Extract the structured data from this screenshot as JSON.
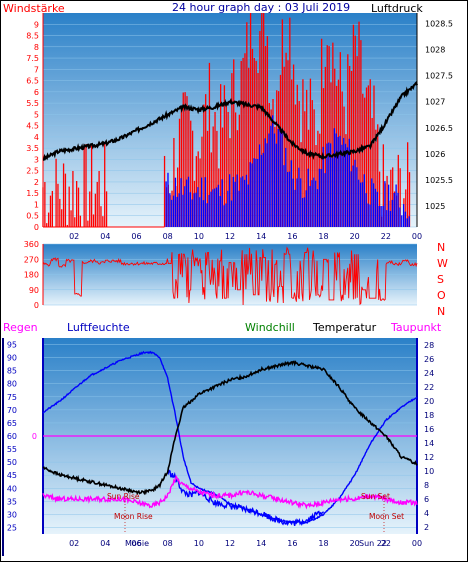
{
  "header": {
    "left_label": "Windstärke",
    "title": "24 hour graph day : 03 Juli 2019",
    "right_label": "Luftdruck"
  },
  "colors": {
    "plot_top": "#2a80c8",
    "plot_bottom": "#e6f3fb",
    "red": "#ff0000",
    "blue": "#0000ff",
    "black": "#000000",
    "magenta": "#ff00ff",
    "green": "#008000",
    "navy": "#00007a",
    "axis_blue": "#0000c0"
  },
  "chart_data": [
    {
      "type": "bar",
      "name": "wind-pressure",
      "left_axis": {
        "label": "Windstärke",
        "ylim": [
          0,
          9.5
        ],
        "ticks": [
          "0",
          "0.5",
          "1",
          "1.5",
          "2",
          "2.5",
          "3",
          "3.5",
          "4",
          "4.5",
          "5",
          "5.5",
          "6",
          "6.5",
          "7",
          "7.5",
          "8",
          "8.5",
          "9"
        ]
      },
      "right_axis": {
        "label": "Luftdruck",
        "ylim": [
          1024.6,
          1028.7
        ],
        "ticks": [
          "1025",
          "1025.5",
          "1026",
          "1026.5",
          "1027",
          "1027.5",
          "1028",
          "1028.5"
        ]
      },
      "x_ticks": [
        "02",
        "04",
        "06",
        "08",
        "10",
        "12",
        "14",
        "16",
        "18",
        "20",
        "22",
        "00"
      ],
      "series": [
        {
          "color": "red",
          "x": [
            0.0,
            0.8,
            1.6,
            3.0,
            4.0,
            7.8,
            8.1,
            8.6,
            9.2,
            9.9,
            10.7,
            11.3,
            12.2,
            12.9,
            13.5,
            13.9,
            14.3,
            14.7,
            15.3,
            15.7,
            16.4,
            17.0,
            17.6,
            18.2,
            18.9,
            19.4,
            20.1,
            20.7,
            21.2,
            21.8,
            22.4,
            23.1,
            23.6
          ],
          "values": [
            1.8,
            1.5,
            1.8,
            1.8,
            1.8,
            1.8,
            2.2,
            3.5,
            4.4,
            3.8,
            5.5,
            4.2,
            5.8,
            6.8,
            9.5,
            8.5,
            9.5,
            5.5,
            7.8,
            9.5,
            6.0,
            5.0,
            4.5,
            9.5,
            6.5,
            5.5,
            8.0,
            5.5,
            4.5,
            1.8,
            1.5,
            1.8,
            1.8
          ]
        },
        {
          "color": "blue",
          "x": [
            7.9,
            8.6,
            9.5,
            10.4,
            11.2,
            12.0,
            12.8,
            13.5,
            14.0,
            14.6,
            15.2,
            15.9,
            16.6,
            17.3,
            18.1,
            18.8,
            19.5,
            20.2,
            20.8,
            21.5,
            22.2,
            23.1,
            23.6
          ],
          "values": [
            1.8,
            1.8,
            1.5,
            1.8,
            1.5,
            1.8,
            1.8,
            2.5,
            3.5,
            4.5,
            4.0,
            2.5,
            2.0,
            1.8,
            3.0,
            4.0,
            3.5,
            2.5,
            1.8,
            1.0,
            1.5,
            1.0,
            1.0
          ]
        },
        {
          "color": "black",
          "type": "line",
          "axis": "right",
          "x": [
            0,
            1,
            2,
            3,
            4,
            5,
            6,
            7,
            8,
            9,
            10,
            11,
            12,
            13,
            14,
            15,
            16,
            17,
            18,
            19,
            20,
            21,
            22,
            23,
            24
          ],
          "values": [
            1025.9,
            1026.05,
            1026.1,
            1026.15,
            1026.2,
            1026.3,
            1026.45,
            1026.6,
            1026.75,
            1026.9,
            1026.85,
            1026.9,
            1027.0,
            1026.95,
            1026.9,
            1026.55,
            1026.2,
            1026.0,
            1025.95,
            1026.0,
            1026.05,
            1026.15,
            1026.6,
            1027.1,
            1027.35
          ]
        }
      ]
    },
    {
      "type": "line",
      "name": "wind-direction",
      "left_axis": {
        "ylim": [
          0,
          360
        ],
        "ticks": [
          "0",
          "90",
          "180",
          "270",
          "360"
        ]
      },
      "right_labels": [
        "N",
        "W",
        "S",
        "O",
        "N"
      ],
      "series": [
        {
          "color": "red",
          "x": [
            0,
            0.5,
            1.0,
            1.5,
            2.0,
            2.5,
            3.0,
            3.5,
            4,
            5,
            6,
            7,
            7.9,
            8.3,
            8.7,
            9.1,
            9.5,
            9.9,
            10.3,
            10.7,
            11.1,
            11.5,
            11.9,
            12.3,
            12.7,
            13.1,
            13.5,
            13.9,
            14.3,
            14.7,
            15.1,
            15.5,
            15.9,
            16.3,
            16.7,
            17.1,
            17.5,
            17.9,
            18.3,
            18.7,
            19.1,
            19.5,
            19.9,
            20.3,
            20.7,
            21.1,
            21.5,
            22.0,
            22.5,
            23.0,
            23.5,
            24
          ],
          "values": [
            240,
            270,
            230,
            260,
            60,
            250,
            260,
            250,
            260,
            245,
            245,
            245,
            245,
            40,
            300,
            90,
            280,
            60,
            310,
            120,
            260,
            40,
            250,
            90,
            300,
            180,
            60,
            280,
            20,
            240,
            110,
            300,
            40,
            200,
            310,
            30,
            60,
            270,
            30,
            310,
            60,
            40,
            300,
            90,
            40,
            40,
            30,
            250,
            240,
            260,
            240,
            250
          ]
        }
      ]
    },
    {
      "type": "line",
      "name": "humidity-temperature",
      "legend": [
        "Regen",
        "Luftfeuchte",
        "Windchill",
        "Temperatur",
        "Taupunkt"
      ],
      "left_axis": {
        "ylim": [
          22.5,
          97.5
        ],
        "ticks": [
          "25",
          "30",
          "35",
          "40",
          "45",
          "50",
          "55",
          "60",
          "65",
          "70",
          "75",
          "80",
          "85",
          "90",
          "95"
        ]
      },
      "right_axis": {
        "ylim": [
          1,
          29
        ],
        "ticks": [
          "2",
          "4",
          "6",
          "8",
          "10",
          "12",
          "14",
          "16",
          "18",
          "20",
          "22",
          "24",
          "26",
          "28"
        ]
      },
      "rain_label": "0",
      "annotations": [
        "Sun Rise",
        "Moon Rise",
        "Sun Set",
        "Moon Set",
        "Mo6ie",
        "Sun 22"
      ],
      "series": [
        {
          "name": "Luftfeuchte",
          "color": "blue",
          "axis": "left",
          "x": [
            0,
            1,
            2,
            3,
            4,
            5,
            6,
            6.5,
            7,
            7.5,
            8,
            8.5,
            9,
            9.5,
            10,
            11,
            12,
            13,
            14,
            15,
            16,
            17,
            18,
            19,
            20,
            21,
            22,
            23,
            24
          ],
          "values": [
            69,
            73,
            78,
            83,
            86,
            89,
            91,
            92,
            92,
            90,
            82,
            68,
            52,
            42,
            40,
            38,
            34,
            32,
            30,
            28,
            27,
            27,
            30,
            36,
            45,
            57,
            66,
            71,
            75
          ]
        },
        {
          "name": "Temperatur",
          "color": "black",
          "axis": "right",
          "x": [
            0,
            1,
            2,
            3,
            4,
            5,
            6,
            6.5,
            7,
            7.5,
            8,
            8.5,
            9,
            10,
            11,
            12,
            13,
            14,
            15,
            16,
            17,
            18,
            19,
            20,
            21,
            22,
            23,
            24
          ],
          "values": [
            10.5,
            9.5,
            9,
            8.5,
            8,
            7.5,
            7,
            7,
            7.2,
            8,
            10,
            15,
            19,
            21,
            22,
            23,
            23.5,
            24.5,
            25,
            25.5,
            25,
            24.5,
            22,
            19,
            17,
            15,
            12,
            11
          ]
        },
        {
          "name": "Windchill",
          "color": "blue",
          "axis": "right",
          "x": [
            8,
            8.5,
            9,
            9.5,
            10,
            11,
            12,
            13,
            14,
            15,
            16,
            17,
            18
          ],
          "values": [
            10,
            9,
            7,
            6.5,
            7,
            5.5,
            5,
            4.5,
            4,
            3,
            2.5,
            3,
            4.5
          ]
        },
        {
          "name": "Taupunkt",
          "color": "magenta",
          "axis": "right",
          "x": [
            0,
            1,
            2,
            3,
            4,
            5,
            6,
            7,
            7.5,
            8,
            8.5,
            9,
            10,
            11,
            12,
            13,
            14,
            15,
            16,
            17,
            18,
            19,
            20,
            21,
            22,
            23,
            24
          ],
          "values": [
            6.5,
            6,
            6,
            6,
            6,
            6,
            5.5,
            5,
            5.5,
            6.5,
            9,
            8,
            7,
            6.5,
            6.5,
            7,
            6.5,
            6,
            5.5,
            5,
            5.5,
            6,
            6,
            6.5,
            6,
            5.5,
            5.5
          ]
        }
      ]
    }
  ]
}
